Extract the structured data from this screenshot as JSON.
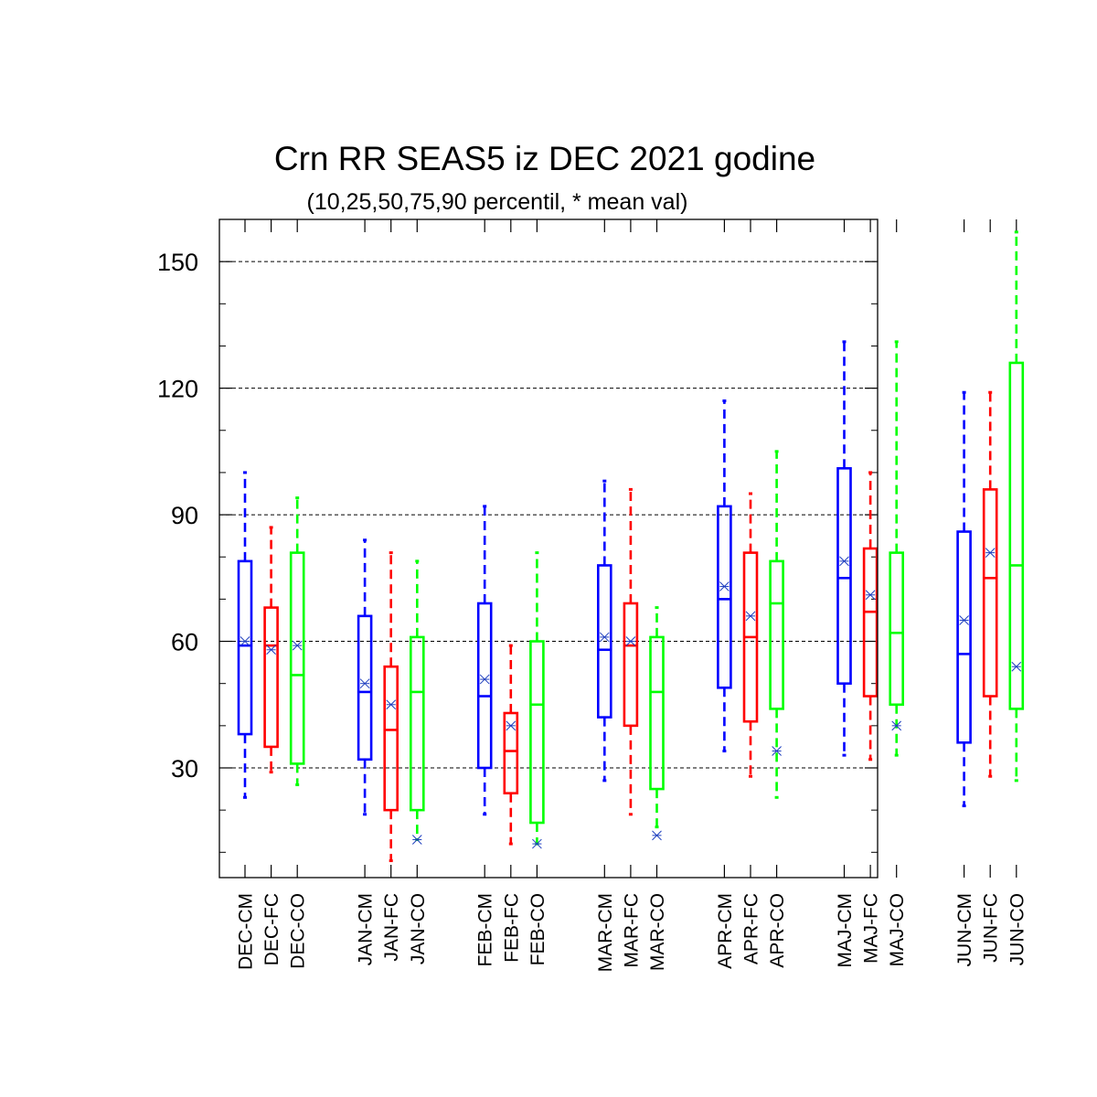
{
  "chart_data": {
    "type": "boxplot",
    "title": "Crn RR SEAS5 iz DEC 2021 godine",
    "subtitle": "(10,25,50,75,90 percentil, * mean val)",
    "xlabel": "",
    "ylabel": "",
    "ylim": [
      4,
      160
    ],
    "yticks": [
      30,
      60,
      90,
      120,
      150
    ],
    "grid": true,
    "colors": {
      "CM": "#0000ff",
      "FC": "#ff0000",
      "CO": "#00ff00",
      "mean_marker": "#1f3fbf"
    },
    "boxes": [
      {
        "label": "DEC-CM",
        "group": "CM",
        "p10": 23,
        "p25": 38,
        "p50": 59,
        "p75": 79,
        "p90": 100,
        "mean": 60
      },
      {
        "label": "DEC-FC",
        "group": "FC",
        "p10": 29,
        "p25": 35,
        "p50": 59,
        "p75": 68,
        "p90": 87,
        "mean": 58
      },
      {
        "label": "DEC-CO",
        "group": "CO",
        "p10": 26,
        "p25": 31,
        "p50": 52,
        "p75": 81,
        "p90": 94,
        "mean": 59
      },
      {
        "label": "JAN-CM",
        "group": "CM",
        "p10": 19,
        "p25": 32,
        "p50": 48,
        "p75": 66,
        "p90": 84,
        "mean": 50
      },
      {
        "label": "JAN-FC",
        "group": "FC",
        "p10": 8,
        "p25": 20,
        "p50": 39,
        "p75": 54,
        "p90": 81,
        "mean": 45
      },
      {
        "label": "JAN-CO",
        "group": "CO",
        "p10": 13,
        "p25": 20,
        "p50": 48,
        "p75": 61,
        "p90": 79,
        "mean": 13
      },
      {
        "label": "FEB-CM",
        "group": "CM",
        "p10": 19,
        "p25": 30,
        "p50": 47,
        "p75": 69,
        "p90": 92,
        "mean": 51
      },
      {
        "label": "FEB-FC",
        "group": "FC",
        "p10": 12,
        "p25": 24,
        "p50": 34,
        "p75": 43,
        "p90": 59,
        "mean": 40
      },
      {
        "label": "FEB-CO",
        "group": "CO",
        "p10": 12,
        "p25": 17,
        "p50": 45,
        "p75": 60,
        "p90": 81,
        "mean": 12
      },
      {
        "label": "MAR-CM",
        "group": "CM",
        "p10": 27,
        "p25": 42,
        "p50": 58,
        "p75": 78,
        "p90": 98,
        "mean": 61
      },
      {
        "label": "MAR-FC",
        "group": "FC",
        "p10": 19,
        "p25": 40,
        "p50": 59,
        "p75": 69,
        "p90": 96,
        "mean": 60
      },
      {
        "label": "MAR-CO",
        "group": "CO",
        "p10": 16,
        "p25": 25,
        "p50": 48,
        "p75": 61,
        "p90": 68,
        "mean": 14
      },
      {
        "label": "APR-CM",
        "group": "CM",
        "p10": 34,
        "p25": 49,
        "p50": 70,
        "p75": 92,
        "p90": 117,
        "mean": 73
      },
      {
        "label": "APR-FC",
        "group": "FC",
        "p10": 28,
        "p25": 41,
        "p50": 61,
        "p75": 81,
        "p90": 95,
        "mean": 66
      },
      {
        "label": "APR-CO",
        "group": "CO",
        "p10": 23,
        "p25": 44,
        "p50": 69,
        "p75": 79,
        "p90": 105,
        "mean": 34
      },
      {
        "label": "MAJ-CM",
        "group": "CM",
        "p10": 33,
        "p25": 50,
        "p50": 75,
        "p75": 101,
        "p90": 131,
        "mean": 79
      },
      {
        "label": "MAJ-FC",
        "group": "FC",
        "p10": 32,
        "p25": 47,
        "p50": 67,
        "p75": 82,
        "p90": 100,
        "mean": 71
      },
      {
        "label": "MAJ-CO",
        "group": "CO",
        "p10": 33,
        "p25": 45,
        "p50": 62,
        "p75": 81,
        "p90": 131,
        "mean": 40
      },
      {
        "label": "JUN-CM",
        "group": "CM",
        "p10": 21,
        "p25": 36,
        "p50": 57,
        "p75": 86,
        "p90": 119,
        "mean": 65
      },
      {
        "label": "JUN-FC",
        "group": "FC",
        "p10": 28,
        "p25": 47,
        "p50": 75,
        "p75": 96,
        "p90": 119,
        "mean": 81
      },
      {
        "label": "JUN-CO",
        "group": "CO",
        "p10": 27,
        "p25": 44,
        "p50": 78,
        "p75": 126,
        "p90": 157,
        "mean": 54
      }
    ]
  }
}
